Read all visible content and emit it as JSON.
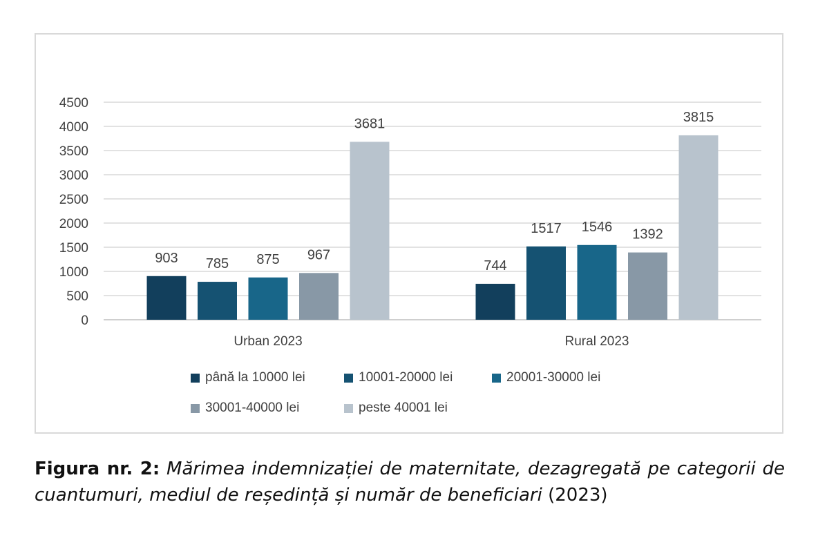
{
  "chart_data": {
    "type": "bar",
    "categories": [
      "Urban 2023",
      "Rural 2023"
    ],
    "series": [
      {
        "name": "până la 10000 lei",
        "values": [
          903,
          744
        ],
        "color": "#123f5c"
      },
      {
        "name": "10001-20000 lei",
        "values": [
          785,
          1517
        ],
        "color": "#155272"
      },
      {
        "name": "20001-30000 lei",
        "values": [
          875,
          1546
        ],
        "color": "#186689"
      },
      {
        "name": "30001-40000 lei",
        "values": [
          967,
          1392
        ],
        "color": "#8898a6"
      },
      {
        "name": "peste 40001 lei",
        "values": [
          3681,
          3815
        ],
        "color": "#b8c3cd"
      }
    ],
    "yticks": [
      "0",
      "500",
      "1000",
      "1500",
      "2000",
      "2500",
      "3000",
      "3500",
      "4000",
      "4500"
    ],
    "ylim": [
      0,
      4500
    ],
    "grid": true,
    "legend_position": "bottom"
  },
  "caption": {
    "label": "Figura nr. 2:",
    "text": "Mărimea indemnizației de maternitate, dezagregată pe categorii de cuantumuri, mediul de reședință și număr de beneficiari",
    "year": "(2023)"
  }
}
